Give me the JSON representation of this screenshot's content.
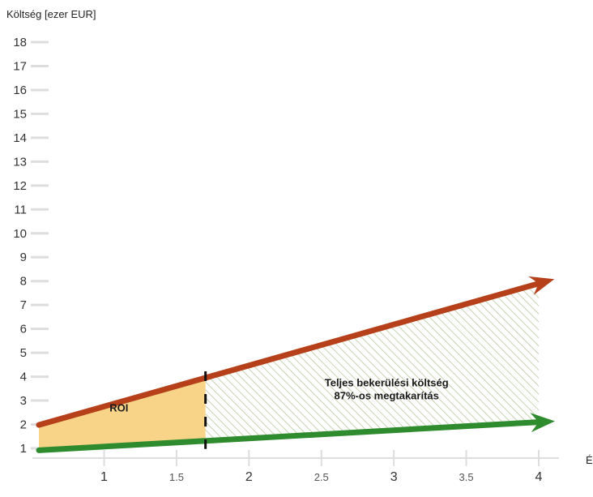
{
  "chart_data": {
    "type": "area",
    "ylabel": "Költség [ezer EUR]",
    "xlabel": "Év",
    "xlim": [
      0.55,
      4.0
    ],
    "ylim": [
      1,
      18
    ],
    "yticks": [
      1,
      2,
      3,
      4,
      5,
      6,
      7,
      8,
      9,
      10,
      11,
      12,
      13,
      14,
      15,
      16,
      17,
      18
    ],
    "xticks": [
      {
        "value": 1,
        "label": "1",
        "major": true
      },
      {
        "value": 1.5,
        "label": "1.5",
        "major": false
      },
      {
        "value": 2,
        "label": "2",
        "major": true
      },
      {
        "value": 2.5,
        "label": "2.5",
        "major": false
      },
      {
        "value": 3,
        "label": "3",
        "major": true
      },
      {
        "value": 3.5,
        "label": "3.5",
        "major": false
      },
      {
        "value": 4,
        "label": "4",
        "major": true
      }
    ],
    "series": [
      {
        "x": [
          0.55,
          4.0
        ],
        "y": [
          1.98,
          7.9
        ],
        "color": "#b5401a"
      },
      {
        "x": [
          0.55,
          4.0
        ],
        "y": [
          0.92,
          2.1
        ],
        "color": "#2e8b2e"
      }
    ],
    "roi_x": 1.7,
    "regions": [
      {
        "label": "ROI",
        "x_from": 0.55,
        "x_to": 1.7,
        "fill": "#f8d488"
      },
      {
        "label_lines": [
          "Teljes bekerülési költség",
          "87%-os megtakarítás"
        ],
        "x_from": 1.7,
        "x_to": 4.0,
        "fill": "hatch",
        "hatch_color": "#b8c79a"
      }
    ]
  }
}
